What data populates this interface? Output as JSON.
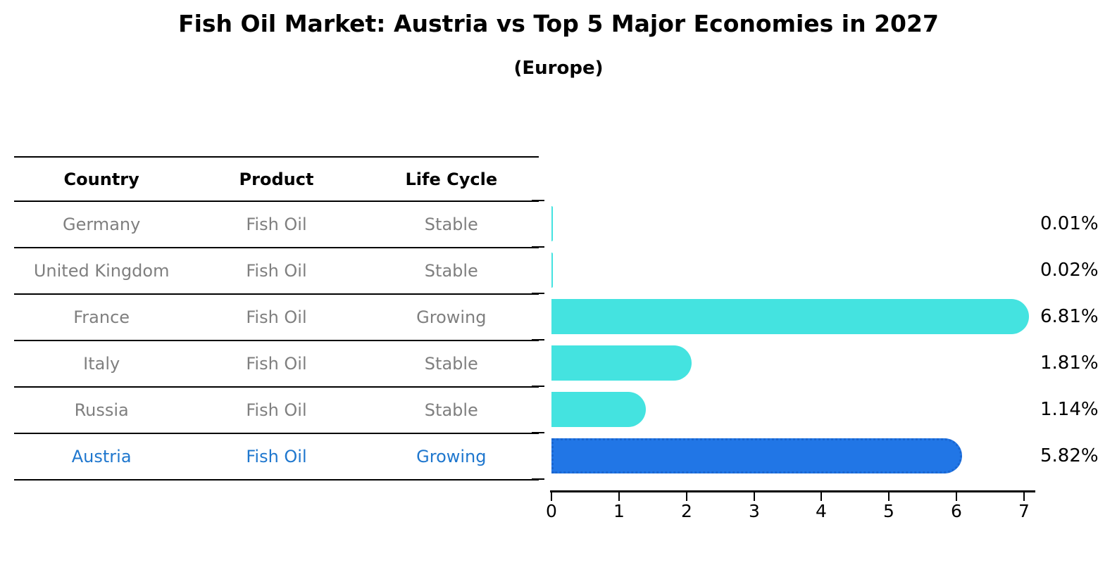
{
  "title": "Fish Oil Market: Austria vs Top 5 Major Economies in 2027",
  "subtitle": "(Europe)",
  "table": {
    "headers": [
      "Country",
      "Product",
      "Life Cycle"
    ],
    "rows": [
      {
        "country": "Germany",
        "product": "Fish Oil",
        "life_cycle": "Stable"
      },
      {
        "country": "United Kingdom",
        "product": "Fish Oil",
        "life_cycle": "Stable"
      },
      {
        "country": "France",
        "product": "Fish Oil",
        "life_cycle": "Growing"
      },
      {
        "country": "Italy",
        "product": "Fish Oil",
        "life_cycle": "Stable"
      },
      {
        "country": "Russia",
        "product": "Fish Oil",
        "life_cycle": "Stable"
      },
      {
        "country": "Austria",
        "product": "Fish Oil",
        "life_cycle": "Growing"
      }
    ],
    "highlighted_row": "Austria"
  },
  "chart_data": {
    "type": "bar",
    "orientation": "horizontal",
    "title": "Fish Oil Market: Austria vs Top 5 Major Economies in 2027",
    "subtitle": "(Europe)",
    "categories": [
      "Germany",
      "United Kingdom",
      "France",
      "Italy",
      "Russia",
      "Austria"
    ],
    "values": [
      0.01,
      0.02,
      6.81,
      1.81,
      1.14,
      5.82
    ],
    "value_labels": [
      "0.01%",
      "0.02%",
      "6.81%",
      "1.81%",
      "1.14%",
      "5.82%"
    ],
    "highlight_index": 5,
    "xlabel": "",
    "ylabel": "",
    "xlim": [
      0,
      7
    ],
    "x_ticks": [
      "0",
      "1",
      "2",
      "3",
      "4",
      "5",
      "6",
      "7"
    ],
    "grid": false,
    "legend": "none",
    "colors": {
      "bar": "#44e3e0",
      "highlight_bar": "#2176e6",
      "highlight_bar_border": "#1a66d0",
      "highlight_text": "#1f77ce",
      "row_text": "#7f7f7f",
      "text": "#000000"
    }
  }
}
